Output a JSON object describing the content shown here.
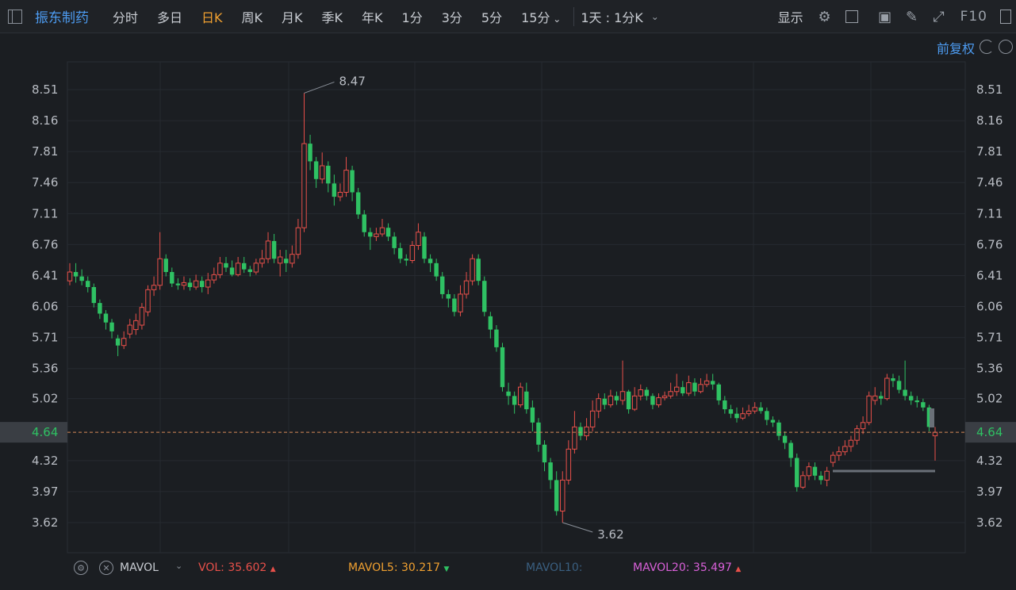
{
  "toolbar": {
    "stock_name": "振东制药",
    "tabs": [
      "分时",
      "多日",
      "日K",
      "周K",
      "月K",
      "季K",
      "年K",
      "1分",
      "3分",
      "5分",
      "15分"
    ],
    "active_tab": "日K",
    "period_select": "1天 : 1分K",
    "display_label": "显示",
    "f10_label": "F10"
  },
  "subbar": {
    "adjust_label": "前复权"
  },
  "indicator_bar": {
    "name": "MAVOL",
    "vol_label": "VOL:",
    "vol_value": "35.602",
    "mavol5_label": "MAVOL5:",
    "mavol5_value": "30.217",
    "mavol10_label": "MAVOL10:",
    "mavol20_label": "MAVOL20:",
    "mavol20_value": "35.497",
    "up_color": "#e8504a",
    "down_color": "#2fc163"
  },
  "chart_data": {
    "type": "candlestick",
    "y_ticks": [
      "8.51",
      "8.16",
      "7.81",
      "7.46",
      "7.11",
      "6.76",
      "6.41",
      "6.06",
      "5.71",
      "5.36",
      "5.02",
      "4.32",
      "3.97",
      "3.62"
    ],
    "current_price": "4.64",
    "max_label": "8.47",
    "min_label": "3.62",
    "ylim": [
      3.36,
      8.81
    ],
    "up_color": "#e8504a",
    "down_color": "#2fc163",
    "candles": [
      [
        6.35,
        6.45,
        6.55,
        6.3
      ],
      [
        6.45,
        6.4,
        6.55,
        6.33
      ],
      [
        6.4,
        6.35,
        6.48,
        6.3
      ],
      [
        6.35,
        6.28,
        6.4,
        6.22
      ],
      [
        6.28,
        6.1,
        6.32,
        6.05
      ],
      [
        6.1,
        5.98,
        6.14,
        5.92
      ],
      [
        5.98,
        5.88,
        6.02,
        5.8
      ],
      [
        5.88,
        5.78,
        5.92,
        5.7
      ],
      [
        5.7,
        5.62,
        5.74,
        5.5
      ],
      [
        5.62,
        5.7,
        5.78,
        5.58
      ],
      [
        5.75,
        5.85,
        5.92,
        5.7
      ],
      [
        5.8,
        5.9,
        5.98,
        5.74
      ],
      [
        5.85,
        6.05,
        6.1,
        5.8
      ],
      [
        6.0,
        6.25,
        6.3,
        5.95
      ],
      [
        6.25,
        6.3,
        6.4,
        6.18
      ],
      [
        6.3,
        6.6,
        6.9,
        6.25
      ],
      [
        6.6,
        6.45,
        6.65,
        6.4
      ],
      [
        6.45,
        6.32,
        6.5,
        6.28
      ],
      [
        6.32,
        6.3,
        6.38,
        6.25
      ],
      [
        6.3,
        6.33,
        6.4,
        6.25
      ],
      [
        6.33,
        6.28,
        6.38,
        6.24
      ],
      [
        6.28,
        6.35,
        6.42,
        6.25
      ],
      [
        6.35,
        6.28,
        6.4,
        6.22
      ],
      [
        6.28,
        6.36,
        6.44,
        6.2
      ],
      [
        6.36,
        6.42,
        6.5,
        6.32
      ],
      [
        6.42,
        6.55,
        6.62,
        6.38
      ],
      [
        6.55,
        6.5,
        6.62,
        6.45
      ],
      [
        6.5,
        6.42,
        6.58,
        6.4
      ],
      [
        6.42,
        6.55,
        6.62,
        6.4
      ],
      [
        6.55,
        6.48,
        6.62,
        6.44
      ],
      [
        6.48,
        6.45,
        6.52,
        6.4
      ],
      [
        6.45,
        6.55,
        6.6,
        6.42
      ],
      [
        6.55,
        6.6,
        6.7,
        6.5
      ],
      [
        6.6,
        6.8,
        6.9,
        6.55
      ],
      [
        6.8,
        6.6,
        6.88,
        6.55
      ],
      [
        6.55,
        6.62,
        6.7,
        6.4
      ],
      [
        6.6,
        6.55,
        6.7,
        6.45
      ],
      [
        6.55,
        6.65,
        6.75,
        6.5
      ],
      [
        6.65,
        6.95,
        7.05,
        6.6
      ],
      [
        6.95,
        7.9,
        8.47,
        6.9
      ],
      [
        7.9,
        7.7,
        8.0,
        7.6
      ],
      [
        7.7,
        7.5,
        7.75,
        7.4
      ],
      [
        7.5,
        7.65,
        7.8,
        7.45
      ],
      [
        7.65,
        7.45,
        7.7,
        7.35
      ],
      [
        7.45,
        7.3,
        7.55,
        7.2
      ],
      [
        7.3,
        7.35,
        7.45,
        7.25
      ],
      [
        7.35,
        7.6,
        7.75,
        7.3
      ],
      [
        7.6,
        7.35,
        7.65,
        7.25
      ],
      [
        7.35,
        7.1,
        7.4,
        7.05
      ],
      [
        7.1,
        6.9,
        7.15,
        6.85
      ],
      [
        6.9,
        6.85,
        6.95,
        6.7
      ],
      [
        6.85,
        6.88,
        6.95,
        6.8
      ],
      [
        6.88,
        6.95,
        7.05,
        6.85
      ],
      [
        6.95,
        6.85,
        7.0,
        6.8
      ],
      [
        6.85,
        6.72,
        6.9,
        6.65
      ],
      [
        6.72,
        6.6,
        6.78,
        6.55
      ],
      [
        6.6,
        6.58,
        6.65,
        6.52
      ],
      [
        6.58,
        6.75,
        6.8,
        6.55
      ],
      [
        6.75,
        6.9,
        7.0,
        6.7
      ],
      [
        6.85,
        6.6,
        6.9,
        6.55
      ],
      [
        6.6,
        6.55,
        6.65,
        6.45
      ],
      [
        6.55,
        6.4,
        6.6,
        6.35
      ],
      [
        6.4,
        6.2,
        6.45,
        6.15
      ],
      [
        6.2,
        6.15,
        6.25,
        6.05
      ],
      [
        6.15,
        6.0,
        6.2,
        5.95
      ],
      [
        6.0,
        6.2,
        6.3,
        5.95
      ],
      [
        6.2,
        6.35,
        6.45,
        6.15
      ],
      [
        6.35,
        6.6,
        6.65,
        6.3
      ],
      [
        6.6,
        6.35,
        6.65,
        6.3
      ],
      [
        6.35,
        6.0,
        6.4,
        5.95
      ],
      [
        5.95,
        5.8,
        6.0,
        5.7
      ],
      [
        5.8,
        5.6,
        5.85,
        5.55
      ],
      [
        5.6,
        5.15,
        5.65,
        5.1
      ],
      [
        5.1,
        5.05,
        5.2,
        4.95
      ],
      [
        5.05,
        4.95,
        5.1,
        4.85
      ],
      [
        4.95,
        5.15,
        5.2,
        4.92
      ],
      [
        5.1,
        4.9,
        5.2,
        4.85
      ],
      [
        4.92,
        4.75,
        5.0,
        4.65
      ],
      [
        4.75,
        4.5,
        4.8,
        4.42
      ],
      [
        4.5,
        4.3,
        4.55,
        4.2
      ],
      [
        4.3,
        4.1,
        4.35,
        4.0
      ],
      [
        4.1,
        3.75,
        4.2,
        3.7
      ],
      [
        3.75,
        4.1,
        4.2,
        3.62
      ],
      [
        4.1,
        4.45,
        4.55,
        4.05
      ],
      [
        4.45,
        4.7,
        4.88,
        4.4
      ],
      [
        4.7,
        4.6,
        4.75,
        4.55
      ],
      [
        4.6,
        4.7,
        4.8,
        4.55
      ],
      [
        4.7,
        4.88,
        5.0,
        4.65
      ],
      [
        4.88,
        5.02,
        5.08,
        4.8
      ],
      [
        5.02,
        4.95,
        5.08,
        4.9
      ],
      [
        4.95,
        5.05,
        5.12,
        4.92
      ],
      [
        5.05,
        5.0,
        5.1,
        4.95
      ],
      [
        5.0,
        5.1,
        5.45,
        4.95
      ],
      [
        5.1,
        4.9,
        5.12,
        4.85
      ],
      [
        4.9,
        5.05,
        5.15,
        4.88
      ],
      [
        5.05,
        5.12,
        5.18,
        5.0
      ],
      [
        5.12,
        5.05,
        5.15,
        5.0
      ],
      [
        5.05,
        4.95,
        5.08,
        4.9
      ],
      [
        4.95,
        5.03,
        5.08,
        4.92
      ],
      [
        5.03,
        5.05,
        5.1,
        5.0
      ],
      [
        5.05,
        5.1,
        5.2,
        5.02
      ],
      [
        5.1,
        5.15,
        5.3,
        5.05
      ],
      [
        5.15,
        5.08,
        5.22,
        5.05
      ],
      [
        5.08,
        5.2,
        5.28,
        5.05
      ],
      [
        5.2,
        5.1,
        5.25,
        5.05
      ],
      [
        5.1,
        5.18,
        5.25,
        5.08
      ],
      [
        5.18,
        5.22,
        5.3,
        5.15
      ],
      [
        5.22,
        5.18,
        5.3,
        5.12
      ],
      [
        5.18,
        5.0,
        5.2,
        4.95
      ],
      [
        5.0,
        4.9,
        5.05,
        4.85
      ],
      [
        4.9,
        4.85,
        4.95,
        4.8
      ],
      [
        4.85,
        4.8,
        4.92,
        4.75
      ],
      [
        4.8,
        4.85,
        4.92,
        4.78
      ],
      [
        4.85,
        4.88,
        4.95,
        4.82
      ],
      [
        4.88,
        4.92,
        4.98,
        4.85
      ],
      [
        4.92,
        4.88,
        4.98,
        4.85
      ],
      [
        4.88,
        4.78,
        4.92,
        4.72
      ],
      [
        4.78,
        4.75,
        4.82,
        4.7
      ],
      [
        4.75,
        4.6,
        4.78,
        4.55
      ],
      [
        4.6,
        4.52,
        4.65,
        4.45
      ],
      [
        4.52,
        4.35,
        4.55,
        4.25
      ],
      [
        4.35,
        4.02,
        4.4,
        3.97
      ],
      [
        4.02,
        4.15,
        4.2,
        4.0
      ],
      [
        4.15,
        4.25,
        4.3,
        4.1
      ],
      [
        4.25,
        4.15,
        4.3,
        4.1
      ],
      [
        4.15,
        4.1,
        4.2,
        4.05
      ],
      [
        4.1,
        4.2,
        4.25,
        4.03
      ],
      [
        4.3,
        4.38,
        4.42,
        4.25
      ],
      [
        4.38,
        4.42,
        4.48,
        4.32
      ],
      [
        4.42,
        4.48,
        4.55,
        4.38
      ],
      [
        4.48,
        4.55,
        4.6,
        4.42
      ],
      [
        4.55,
        4.68,
        4.72,
        4.5
      ],
      [
        4.68,
        4.75,
        4.82,
        4.62
      ],
      [
        4.75,
        5.05,
        5.1,
        4.72
      ],
      [
        5.0,
        5.05,
        5.15,
        4.95
      ],
      [
        5.05,
        5.02,
        5.1,
        4.95
      ],
      [
        5.02,
        5.25,
        5.3,
        5.0
      ],
      [
        5.25,
        5.22,
        5.3,
        5.15
      ],
      [
        5.22,
        5.12,
        5.28,
        5.08
      ],
      [
        5.12,
        5.05,
        5.45,
        5.0
      ],
      [
        5.05,
        5.0,
        5.1,
        4.95
      ],
      [
        5.0,
        4.98,
        5.05,
        4.92
      ],
      [
        4.98,
        4.92,
        5.02,
        4.88
      ],
      [
        4.92,
        4.7,
        4.95,
        4.65
      ],
      [
        4.6,
        4.64,
        4.7,
        4.32
      ]
    ]
  }
}
